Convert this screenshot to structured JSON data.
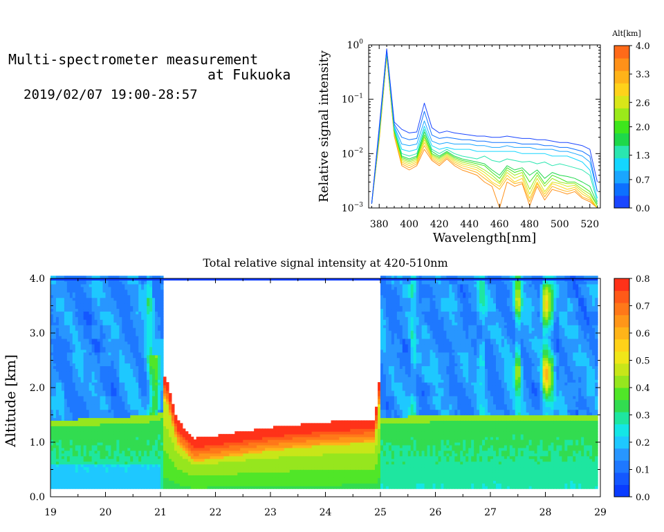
{
  "title_line1": "Multi-spectrometer measurement",
  "title_line2": "at Fukuoka",
  "timestamp": "2019/02/07 19:00-28:57",
  "chart_data": [
    {
      "type": "line",
      "xlabel": "Wavelength[nm]",
      "ylabel": "Relative signal intensity",
      "xlim": [
        373,
        527
      ],
      "ylim": [
        0.001,
        1
      ],
      "y_scale": "log",
      "x_ticks": [
        380,
        400,
        420,
        440,
        460,
        480,
        500,
        520
      ],
      "x_tick_labels": [
        "380",
        "400",
        "420",
        "440",
        "460",
        "480",
        "500",
        "520"
      ],
      "y_ticks": [
        0.001,
        0.01,
        0.1,
        1
      ],
      "y_tick_labels": [
        {
          "base": "10",
          "exp": "−3"
        },
        {
          "base": "10",
          "exp": "−2"
        },
        {
          "base": "10",
          "exp": "−1"
        },
        {
          "base": "10",
          "exp": "0"
        }
      ],
      "colorbar": {
        "title": "Alt[km]",
        "min": 0.0,
        "max": 4.0,
        "tick_values": [
          0.0,
          0.7,
          1.3,
          2.0,
          2.6,
          3.3,
          4.0
        ],
        "tick_labels": [
          "0.0",
          "0.7",
          "1.3",
          "2.0",
          "2.6",
          "3.3",
          "4.0"
        ],
        "colors": [
          "#1a46ff",
          "#0d70ff",
          "#1aa6ff",
          "#14d6ff",
          "#2ae6b0",
          "#1ed84a",
          "#3ee61c",
          "#9bea1a",
          "#d9e619",
          "#ffd21a",
          "#ffb319",
          "#ff9119",
          "#ff6a19"
        ]
      },
      "x": [
        375,
        380,
        385,
        390,
        395,
        400,
        405,
        410,
        415,
        420,
        425,
        430,
        435,
        440,
        445,
        450,
        455,
        460,
        465,
        470,
        475,
        480,
        485,
        490,
        495,
        500,
        505,
        510,
        515,
        520,
        525
      ],
      "series": [
        {
          "altitude": 0.2,
          "color": "#1a46ff",
          "values": [
            0.0012,
            0.03,
            0.85,
            0.038,
            0.028,
            0.024,
            0.025,
            0.085,
            0.03,
            0.024,
            0.026,
            0.024,
            0.023,
            0.022,
            0.021,
            0.021,
            0.02,
            0.02,
            0.021,
            0.02,
            0.019,
            0.019,
            0.018,
            0.018,
            0.017,
            0.016,
            0.016,
            0.015,
            0.014,
            0.012,
            0.003
          ]
        },
        {
          "altitude": 0.5,
          "color": "#0d70ff",
          "values": [
            0.0012,
            0.028,
            0.82,
            0.035,
            0.02,
            0.018,
            0.019,
            0.06,
            0.022,
            0.019,
            0.02,
            0.019,
            0.018,
            0.018,
            0.017,
            0.017,
            0.016,
            0.016,
            0.016,
            0.016,
            0.015,
            0.015,
            0.015,
            0.014,
            0.014,
            0.013,
            0.013,
            0.012,
            0.011,
            0.009,
            0.002
          ]
        },
        {
          "altitude": 0.9,
          "color": "#1aa6ff",
          "values": [
            0.0012,
            0.026,
            0.8,
            0.032,
            0.015,
            0.014,
            0.015,
            0.04,
            0.017,
            0.015,
            0.016,
            0.015,
            0.015,
            0.015,
            0.014,
            0.014,
            0.013,
            0.013,
            0.014,
            0.013,
            0.013,
            0.013,
            0.012,
            0.012,
            0.012,
            0.011,
            0.011,
            0.01,
            0.009,
            0.007,
            0.002
          ]
        },
        {
          "altitude": 1.3,
          "color": "#14d6ff",
          "values": [
            0.0012,
            0.025,
            0.78,
            0.03,
            0.012,
            0.011,
            0.012,
            0.032,
            0.014,
            0.012,
            0.013,
            0.012,
            0.012,
            0.012,
            0.011,
            0.011,
            0.011,
            0.011,
            0.011,
            0.011,
            0.01,
            0.01,
            0.01,
            0.01,
            0.009,
            0.009,
            0.009,
            0.008,
            0.007,
            0.005,
            0.0015
          ]
        },
        {
          "altitude": 1.7,
          "color": "#2ae6b0",
          "values": [
            0.0012,
            0.024,
            0.76,
            0.028,
            0.01,
            0.009,
            0.01,
            0.028,
            0.012,
            0.01,
            0.012,
            0.01,
            0.009,
            0.0085,
            0.008,
            0.009,
            0.0075,
            0.007,
            0.008,
            0.0075,
            0.007,
            0.0072,
            0.0065,
            0.007,
            0.006,
            0.0065,
            0.006,
            0.0055,
            0.005,
            0.004,
            0.0013
          ]
        },
        {
          "altitude": 2.0,
          "color": "#1ed84a",
          "values": [
            0.0012,
            0.023,
            0.74,
            0.027,
            0.009,
            0.008,
            0.009,
            0.025,
            0.011,
            0.009,
            0.011,
            0.009,
            0.008,
            0.0075,
            0.007,
            0.0065,
            0.005,
            0.004,
            0.006,
            0.005,
            0.0055,
            0.004,
            0.005,
            0.0035,
            0.0045,
            0.004,
            0.0038,
            0.0035,
            0.003,
            0.0025,
            0.0012
          ]
        },
        {
          "altitude": 2.3,
          "color": "#3ee61c",
          "values": [
            0.0012,
            0.022,
            0.72,
            0.026,
            0.0085,
            0.0075,
            0.0085,
            0.022,
            0.01,
            0.0085,
            0.0105,
            0.0085,
            0.0075,
            0.007,
            0.0065,
            0.006,
            0.0045,
            0.0035,
            0.0055,
            0.0045,
            0.005,
            0.003,
            0.0045,
            0.0028,
            0.004,
            0.0035,
            0.003,
            0.003,
            0.0025,
            0.002,
            0.0011
          ]
        },
        {
          "altitude": 2.6,
          "color": "#9bea1a",
          "values": [
            0.0012,
            0.021,
            0.7,
            0.025,
            0.008,
            0.007,
            0.008,
            0.02,
            0.0095,
            0.008,
            0.01,
            0.008,
            0.007,
            0.0065,
            0.006,
            0.005,
            0.004,
            0.003,
            0.005,
            0.004,
            0.0045,
            0.0022,
            0.004,
            0.0025,
            0.0035,
            0.003,
            0.0028,
            0.0028,
            0.0022,
            0.0018,
            0.0011
          ]
        },
        {
          "altitude": 3.0,
          "color": "#d9e619",
          "values": [
            0.0012,
            0.02,
            0.68,
            0.024,
            0.0075,
            0.0065,
            0.0075,
            0.018,
            0.009,
            0.0075,
            0.0095,
            0.0075,
            0.0065,
            0.006,
            0.0055,
            0.0045,
            0.0035,
            0.0028,
            0.0045,
            0.0035,
            0.004,
            0.0018,
            0.0035,
            0.002,
            0.003,
            0.0028,
            0.0025,
            0.0026,
            0.002,
            0.0016,
            0.001
          ]
        },
        {
          "altitude": 3.3,
          "color": "#ffd21a",
          "values": [
            0.0012,
            0.019,
            0.66,
            0.023,
            0.007,
            0.006,
            0.007,
            0.016,
            0.0085,
            0.007,
            0.009,
            0.007,
            0.006,
            0.0055,
            0.005,
            0.004,
            0.003,
            0.0025,
            0.004,
            0.003,
            0.0035,
            0.0015,
            0.003,
            0.0018,
            0.0028,
            0.0025,
            0.0022,
            0.0024,
            0.0018,
            0.0015,
            0.001
          ]
        },
        {
          "altitude": 3.6,
          "color": "#ffb319",
          "values": [
            0.0012,
            0.018,
            0.64,
            0.022,
            0.0065,
            0.0055,
            0.0065,
            0.014,
            0.008,
            0.0065,
            0.0085,
            0.0065,
            0.0055,
            0.005,
            0.0045,
            0.0035,
            0.0028,
            0.0022,
            0.0035,
            0.0028,
            0.003,
            0.0013,
            0.0028,
            0.0016,
            0.0025,
            0.0022,
            0.002,
            0.0022,
            0.0016,
            0.0014,
            0.001
          ]
        },
        {
          "altitude": 4.0,
          "color": "#ff9119",
          "values": [
            0.0012,
            0.017,
            0.62,
            0.021,
            0.006,
            0.005,
            0.006,
            0.012,
            0.0075,
            0.006,
            0.008,
            0.006,
            0.005,
            0.0045,
            0.004,
            0.003,
            0.0025,
            0.001,
            0.003,
            0.0025,
            0.0028,
            0.0011,
            0.0025,
            0.0014,
            0.0022,
            0.002,
            0.0018,
            0.002,
            0.0015,
            0.0013,
            0.001
          ]
        }
      ]
    },
    {
      "type": "heatmap",
      "title": "Total relative signal intensity at 420-510nm",
      "ylabel": "Altitude [km]",
      "xlabel": "",
      "xlim": [
        19,
        29
      ],
      "ylim": [
        0,
        4
      ],
      "x_ticks": [
        19,
        20,
        21,
        22,
        23,
        24,
        25,
        26,
        27,
        28,
        29
      ],
      "x_tick_labels": [
        "19",
        "20",
        "21",
        "22",
        "23",
        "24",
        "25",
        "26",
        "27",
        "28",
        "29"
      ],
      "y_ticks": [
        0,
        1,
        2,
        3,
        4
      ],
      "y_tick_labels": [
        "0.0",
        "1.0",
        "2.0",
        "3.0",
        "4.0"
      ],
      "data_time_range": [
        19.0,
        28.95
      ],
      "data_altitude_range": [
        0.15,
        4.0
      ],
      "colorbar": {
        "min": 0.0,
        "max": 0.8,
        "tick_values": [
          0.0,
          0.1,
          0.2,
          0.3,
          0.4,
          0.5,
          0.6,
          0.7,
          0.8
        ],
        "tick_labels": [
          "0.0",
          "0.1",
          "0.2",
          "0.3",
          "0.4",
          "0.5",
          "0.6",
          "0.7",
          "0.8"
        ],
        "colors": [
          "#0a3cff",
          "#1458ff",
          "#1e78ff",
          "#2896ff",
          "#1ec8ff",
          "#14e6e6",
          "#1ee6a0",
          "#32dc50",
          "#50e628",
          "#96e61e",
          "#c8e619",
          "#f0e619",
          "#ffd219",
          "#ffb419",
          "#ff9619",
          "#ff7819",
          "#ff5a19",
          "#ff3219"
        ]
      },
      "profile": {
        "time": [
          19.0,
          20.0,
          20.9,
          21.1,
          21.3,
          21.6,
          22.0,
          23.0,
          24.0,
          24.9,
          25.0,
          26.0,
          27.0,
          28.0,
          28.95
        ],
        "cloud_base_km": [
          null,
          null,
          null,
          2.1,
          1.3,
          0.95,
          1.0,
          1.15,
          1.25,
          1.3,
          2.2,
          null,
          null,
          null,
          null
        ],
        "boundary_layer_top_km": [
          1.4,
          1.45,
          1.5,
          1.6,
          1.3,
          0.95,
          1.0,
          1.15,
          1.25,
          1.3,
          1.45,
          1.5,
          1.5,
          1.5,
          1.5
        ]
      }
    }
  ]
}
